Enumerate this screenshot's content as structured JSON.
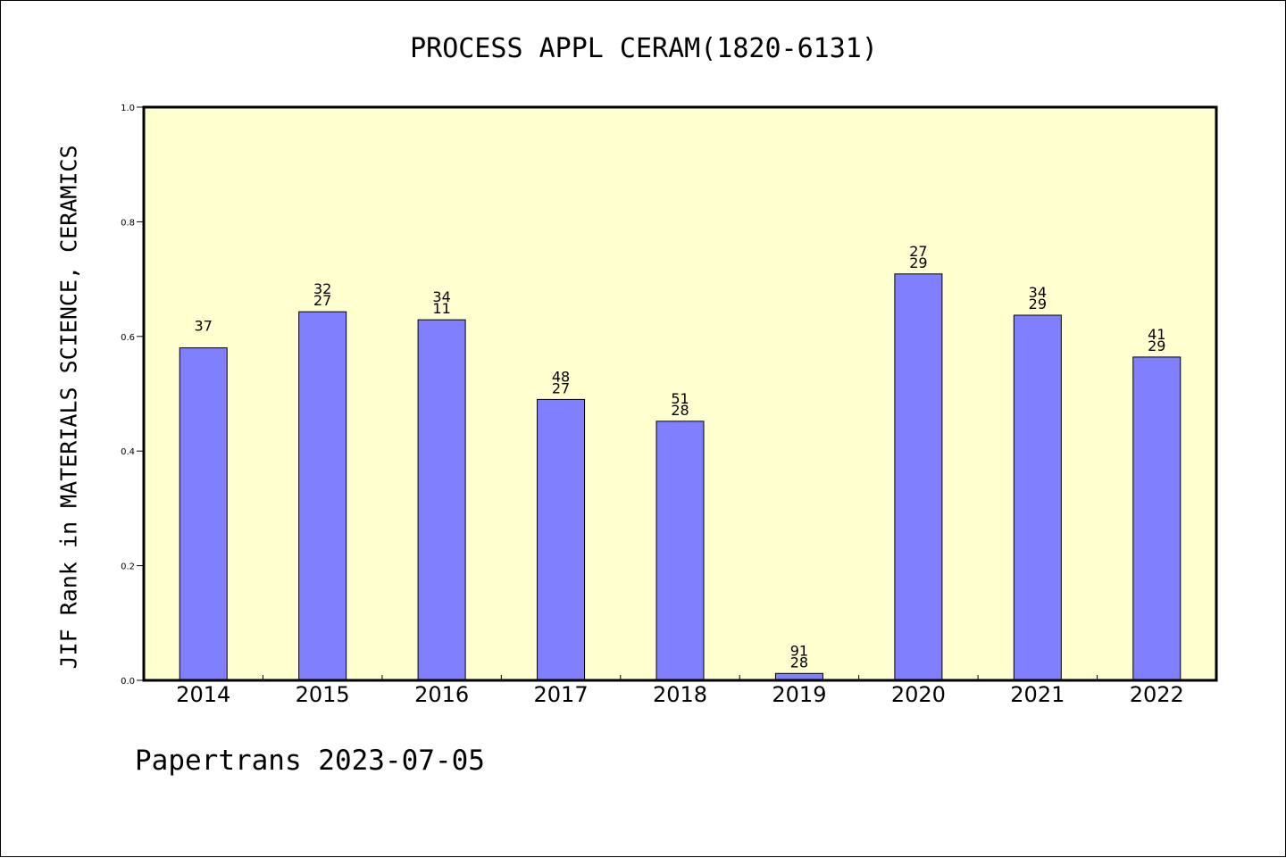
{
  "chart_data": {
    "type": "bar",
    "title": "PROCESS APPL CERAM(1820-6131)",
    "ylabel": "JIF Rank in MATERIALS SCIENCE, CERAMICS",
    "xlabel": "",
    "ylim": [
      0,
      1.0
    ],
    "yticks": [
      "0.0",
      "0.2",
      "0.4",
      "0.6",
      "0.8",
      "1.0"
    ],
    "categories": [
      "2014",
      "2015",
      "2016",
      "2017",
      "2018",
      "2019",
      "2020",
      "2021",
      "2022"
    ],
    "values": [
      0.58,
      0.643,
      0.629,
      0.49,
      0.452,
      0.012,
      0.709,
      0.637,
      0.564
    ],
    "bar_labels": [
      [
        "37"
      ],
      [
        "32",
        "27"
      ],
      [
        "34",
        "11"
      ],
      [
        "48",
        "27"
      ],
      [
        "51",
        "28"
      ],
      [
        "91",
        "28"
      ],
      [
        "27",
        "29"
      ],
      [
        "34",
        "29"
      ],
      [
        "41",
        "29"
      ]
    ],
    "grid": false,
    "colors": {
      "plot_bg": "#ffffd0",
      "bar": "#8080ff",
      "bar_edge": "#000000"
    }
  },
  "footer": "Papertrans 2023-07-05"
}
